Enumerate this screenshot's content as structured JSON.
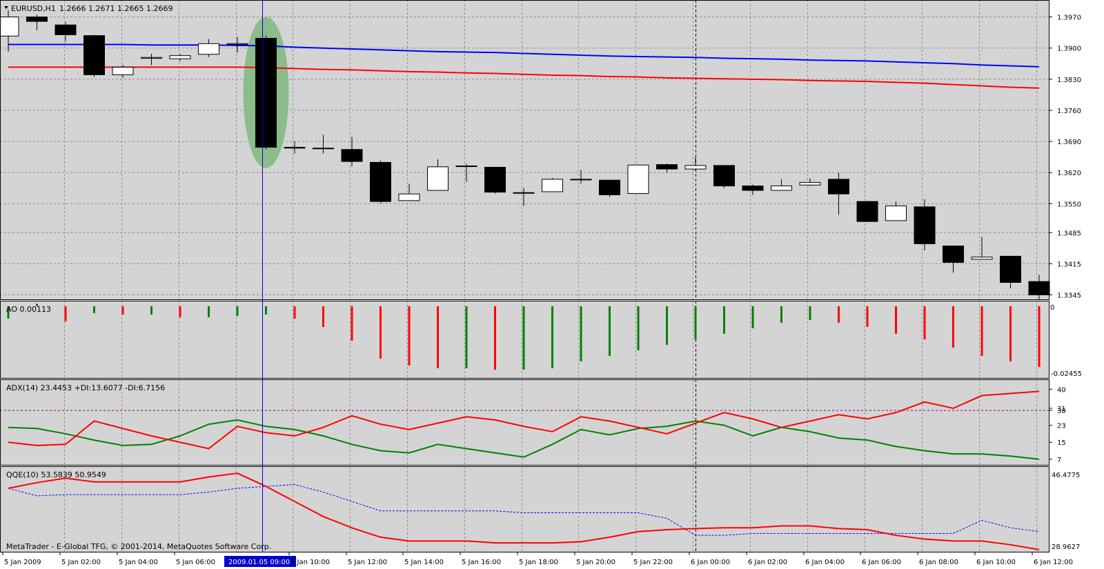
{
  "window": {
    "symbol": "EURUSD,H1",
    "ohlc": "1.2666 1.2671 1.2665 1.2669",
    "copyright": "MetaTrader - E-Global TFG, © 2001-2014, MetaQuotes Software Corp."
  },
  "colors": {
    "background": "#d4d4d4",
    "grid": "#8c8c8c",
    "bull_candle": "#ffffff",
    "bear_candle": "#000000",
    "ma_fast": "#0000ff",
    "ma_slow": "#ff0000",
    "ao_up": "#008000",
    "ao_down": "#ff0000",
    "adx": "#800080",
    "plus_di": "#ff0000",
    "minus_di": "#008000",
    "qqe_line": "#ff0000",
    "qqe_signal": "#0000ff",
    "highlight_ellipse": "#7fb77f",
    "crosshair": "#0000cc"
  },
  "time_axis": {
    "labels": [
      "5 Jan 2009",
      "5 Jan 02:00",
      "5 Jan 04:00",
      "5 Jan 06:00",
      "2009.01.05 09:00",
      "5 Jan 10:00",
      "5 Jan 12:00",
      "5 Jan 14:00",
      "5 Jan 16:00",
      "5 Jan 18:00",
      "5 Jan 20:00",
      "5 Jan 22:00",
      "6 Jan 00:00",
      "6 Jan 02:00",
      "6 Jan 04:00",
      "6 Jan 06:00",
      "6 Jan 08:00",
      "6 Jan 10:00",
      "6 Jan 12:00"
    ],
    "highlighted_label": "2009.01.05 09:00"
  },
  "main_panel": {
    "price_labels": [
      "1.3970",
      "1.3900",
      "1.3830",
      "1.3760",
      "1.3690",
      "1.3620",
      "1.3550",
      "1.3485",
      "1.3415",
      "1.3345"
    ]
  },
  "ao_panel": {
    "title": "AO 0.00113",
    "labels": [
      "0",
      "-0.02455"
    ]
  },
  "adx_panel": {
    "title": "ADX(14) 23.4453 +DI:13.6077 -DI:6.7156",
    "labels": [
      "40",
      "31",
      "30",
      "23",
      "15",
      "7"
    ]
  },
  "qqe_panel": {
    "title": "QQE(10) 53.5839 50.9549",
    "labels": [
      "46.4775",
      "28.9627"
    ]
  },
  "chart_data": {
    "type": "candlestick",
    "title": "EURUSD,H1",
    "price_range": [
      1.3335,
      1.4005
    ],
    "x": [
      "5 Jan 00:00",
      "5 Jan 01:00",
      "5 Jan 02:00",
      "5 Jan 03:00",
      "5 Jan 04:00",
      "5 Jan 05:00",
      "5 Jan 06:00",
      "5 Jan 07:00",
      "5 Jan 08:00",
      "5 Jan 09:00",
      "5 Jan 10:00",
      "5 Jan 11:00",
      "5 Jan 12:00",
      "5 Jan 13:00",
      "5 Jan 14:00",
      "5 Jan 15:00",
      "5 Jan 16:00",
      "5 Jan 17:00",
      "5 Jan 18:00",
      "5 Jan 19:00",
      "5 Jan 20:00",
      "5 Jan 21:00",
      "5 Jan 22:00",
      "5 Jan 23:00",
      "6 Jan 00:00",
      "6 Jan 01:00",
      "6 Jan 02:00",
      "6 Jan 03:00",
      "6 Jan 04:00",
      "6 Jan 05:00",
      "6 Jan 06:00",
      "6 Jan 07:00",
      "6 Jan 08:00",
      "6 Jan 09:00",
      "6 Jan 10:00",
      "6 Jan 11:00",
      "6 Jan 12:00"
    ],
    "ohlc": [
      [
        1.3927,
        1.3985,
        1.3892,
        1.397
      ],
      [
        1.397,
        1.3975,
        1.394,
        1.396
      ],
      [
        1.3952,
        1.3958,
        1.3915,
        1.393
      ],
      [
        1.3928,
        1.393,
        1.3835,
        1.384
      ],
      [
        1.384,
        1.3862,
        1.3833,
        1.3857
      ],
      [
        1.3877,
        1.3887,
        1.3862,
        1.3879
      ],
      [
        1.3876,
        1.3887,
        1.387,
        1.3883
      ],
      [
        1.3886,
        1.392,
        1.388,
        1.391
      ],
      [
        1.3908,
        1.3925,
        1.389,
        1.391
      ],
      [
        1.3922,
        1.3928,
        1.3672,
        1.3677
      ],
      [
        1.3677,
        1.369,
        1.3663,
        1.3675
      ],
      [
        1.3675,
        1.3705,
        1.3663,
        1.3675
      ],
      [
        1.3672,
        1.37,
        1.3634,
        1.3645
      ],
      [
        1.3643,
        1.3647,
        1.3551,
        1.3555
      ],
      [
        1.3557,
        1.3595,
        1.3557,
        1.3572
      ],
      [
        1.358,
        1.365,
        1.358,
        1.3633
      ],
      [
        1.3635,
        1.364,
        1.3599,
        1.3635
      ],
      [
        1.3632,
        1.3632,
        1.3573,
        1.3576
      ],
      [
        1.3575,
        1.3585,
        1.3545,
        1.3575
      ],
      [
        1.3577,
        1.3608,
        1.3577,
        1.3605
      ],
      [
        1.3605,
        1.3626,
        1.3595,
        1.3605
      ],
      [
        1.3603,
        1.3603,
        1.3565,
        1.357
      ],
      [
        1.3573,
        1.3637,
        1.3573,
        1.3637
      ],
      [
        1.3638,
        1.364,
        1.362,
        1.3628
      ],
      [
        1.3628,
        1.3655,
        1.3625,
        1.3636
      ],
      [
        1.3636,
        1.3636,
        1.3585,
        1.359
      ],
      [
        1.359,
        1.3593,
        1.357,
        1.358
      ],
      [
        1.358,
        1.3605,
        1.358,
        1.359
      ],
      [
        1.3592,
        1.3607,
        1.359,
        1.3598
      ],
      [
        1.3605,
        1.362,
        1.3525,
        1.3572
      ],
      [
        1.3555,
        1.3555,
        1.351,
        1.351
      ],
      [
        1.3512,
        1.3555,
        1.3512,
        1.3545
      ],
      [
        1.3543,
        1.356,
        1.3445,
        1.346
      ],
      [
        1.3455,
        1.3455,
        1.3395,
        1.3418
      ],
      [
        1.3425,
        1.3475,
        1.3425,
        1.343
      ],
      [
        1.3432,
        1.3432,
        1.336,
        1.3373
      ],
      [
        1.3375,
        1.339,
        1.3335,
        1.3345
      ]
    ],
    "series": [
      {
        "name": "",
        "type": "line",
        "values": [
          1.3908,
          1.3908,
          1.3908,
          1.3908,
          1.3908,
          1.3907,
          1.3907,
          1.3907,
          1.3906,
          1.3905,
          1.3902,
          1.39,
          1.3898,
          1.3896,
          1.3894,
          1.3892,
          1.3891,
          1.389,
          1.3888,
          1.3886,
          1.3884,
          1.3882,
          1.3881,
          1.388,
          1.3879,
          1.3877,
          1.3876,
          1.3875,
          1.3873,
          1.3872,
          1.3871,
          1.3869,
          1.3867,
          1.3865,
          1.3862,
          1.386,
          1.3858
        ]
      },
      {
        "name": "",
        "type": "line",
        "values": [
          1.3857,
          1.3857,
          1.3857,
          1.3857,
          1.3857,
          1.3857,
          1.3857,
          1.3857,
          1.3857,
          1.3856,
          1.3854,
          1.3852,
          1.3851,
          1.3849,
          1.3847,
          1.3846,
          1.3844,
          1.3843,
          1.3841,
          1.3839,
          1.3838,
          1.3836,
          1.3835,
          1.3833,
          1.3832,
          1.3831,
          1.383,
          1.3829,
          1.3827,
          1.3826,
          1.3825,
          1.3823,
          1.3821,
          1.3818,
          1.3815,
          1.3812,
          1.381
        ]
      }
    ],
    "indicators": {
      "ao": {
        "range": [
          -0.0255,
          0.0015
        ],
        "values": [
          -0.0045,
          0.0009,
          -0.0055,
          -0.0025,
          -0.003,
          -0.003,
          -0.004,
          -0.004,
          -0.0035,
          -0.003,
          -0.0045,
          -0.0075,
          -0.0125,
          -0.019,
          -0.0215,
          -0.0225,
          -0.0225,
          -0.023,
          -0.023,
          -0.0225,
          -0.02,
          -0.018,
          -0.016,
          -0.014,
          -0.012,
          -0.01,
          -0.008,
          -0.006,
          -0.005,
          -0.006,
          -0.0075,
          -0.01,
          -0.012,
          -0.015,
          -0.018,
          -0.02,
          -0.022
        ]
      },
      "adx": {
        "range": [
          5,
          44
        ],
        "level": 30
      },
      "plus_di": [
        15,
        13.5,
        14,
        25,
        21.5,
        18,
        15,
        12,
        22.5,
        19.5,
        18,
        22,
        27.5,
        23.5,
        21,
        24,
        27,
        25.5,
        22.5,
        20,
        27,
        25,
        22,
        19,
        24,
        29,
        26,
        22,
        25,
        28,
        26,
        29,
        34,
        31,
        37,
        38,
        39
      ],
      "minus_di": [
        22,
        21.5,
        19,
        16,
        13.5,
        14,
        18,
        23.5,
        25.5,
        22.5,
        21,
        18,
        14,
        11,
        10,
        14,
        12,
        10,
        8,
        14,
        21,
        18.5,
        21.5,
        22.5,
        25,
        23,
        18,
        22,
        20,
        17,
        16,
        13,
        11,
        9.5,
        9.5,
        8.5,
        7
      ],
      "qqe": {
        "range": [
          27,
          49
        ],
        "values": [
          43.5,
          45,
          46.2,
          45.2,
          45.2,
          45.2,
          45.2,
          46.5,
          47.5,
          44.0,
          40.0,
          36.0,
          33.0,
          30.5,
          29.5,
          29.5,
          29.5,
          29.0,
          29.0,
          29.0,
          29.3,
          30.5,
          32.0,
          32.5,
          32.8,
          33.0,
          33.0,
          33.5,
          33.5,
          32.8,
          32.5,
          31.0,
          30.0,
          29.5,
          29.5,
          28.5,
          27.2
        ]
      },
      "qqe_signal": [
        43.5,
        41.5,
        41.8,
        41.8,
        41.8,
        41.8,
        41.8,
        42.5,
        43.5,
        44.0,
        44.5,
        42.5,
        40.0,
        37.5,
        37.5,
        37.5,
        37.5,
        37.5,
        37.0,
        37.0,
        37.0,
        37.0,
        37.0,
        35.5,
        31.0,
        31.0,
        31.5,
        31.5,
        31.5,
        31.5,
        31.5,
        31.5,
        31.5,
        31.5,
        35.0,
        33.0,
        32.0
      ]
    }
  }
}
